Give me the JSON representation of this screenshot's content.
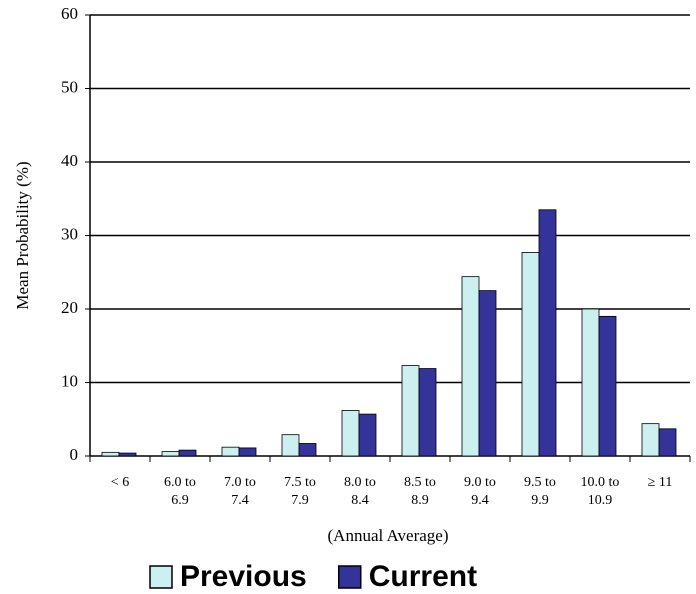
{
  "chart_data": {
    "type": "bar",
    "y_label": "Mean Probability (%)",
    "x_label": "(Annual Average)",
    "categories": [
      "< 6",
      "6.0 to 6.9",
      "7.0 to 7.4",
      "7.5 to 7.9",
      "8.0 to 8.4",
      "8.5 to 8.9",
      "9.0 to 9.4",
      "9.5 to 9.9",
      "10.0 to 10.9",
      "≥ 11"
    ],
    "series": [
      {
        "name": "Previous",
        "color": "#ccf0f0",
        "values": [
          0.5,
          0.6,
          1.2,
          2.9,
          6.2,
          12.3,
          24.4,
          27.7,
          20.0,
          4.4
        ]
      },
      {
        "name": "Current",
        "color": "#333399",
        "values": [
          0.4,
          0.8,
          1.1,
          1.7,
          5.7,
          11.9,
          22.5,
          33.5,
          19.0,
          3.7
        ]
      }
    ],
    "ylim": [
      0,
      60
    ],
    "yticks": [
      0,
      10,
      20,
      30,
      40,
      50,
      60
    ],
    "grid": true,
    "legend": "bottom"
  }
}
